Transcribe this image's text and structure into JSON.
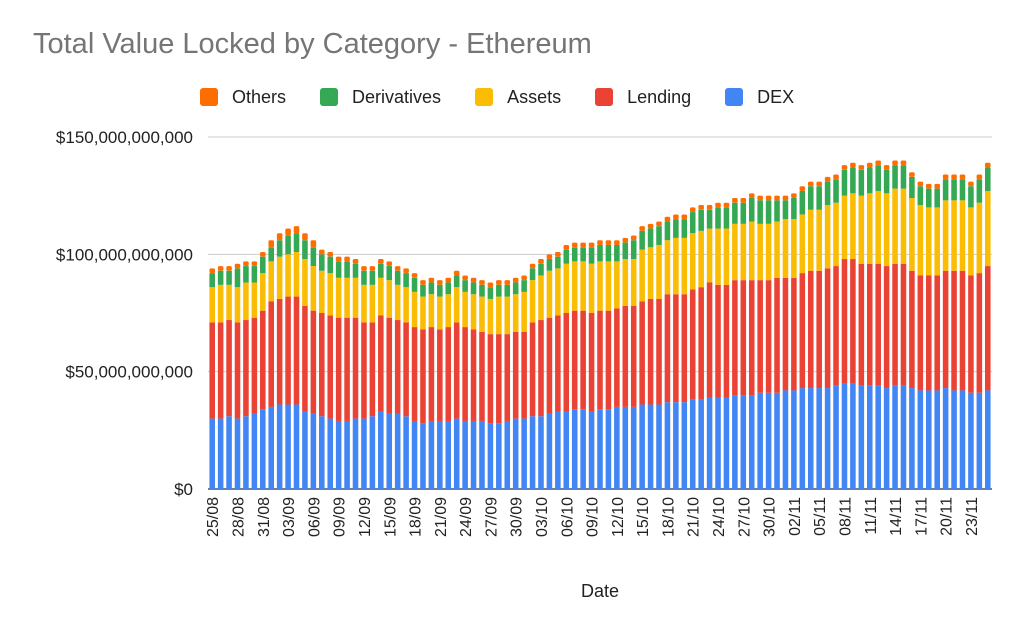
{
  "chart_data": {
    "type": "bar",
    "stacked": true,
    "title": "Total Value Locked by Category - Ethereum",
    "xlabel": "Date",
    "ylabel": "",
    "ylim": [
      0,
      150000000000
    ],
    "yticks": [
      0,
      50000000000,
      100000000000,
      150000000000
    ],
    "ytick_labels": [
      "$0",
      "$50,000,000,000",
      "$100,000,000,000",
      "$150,000,000,000"
    ],
    "grid": true,
    "legend_position": "top",
    "legend": [
      "Others",
      "Derivatives",
      "Assets",
      "Lending",
      "DEX"
    ],
    "tick_labels": [
      "25/08",
      "28/08",
      "31/08",
      "03/09",
      "06/09",
      "09/09",
      "12/09",
      "15/09",
      "18/09",
      "21/09",
      "24/09",
      "27/09",
      "30/09",
      "03/10",
      "06/10",
      "09/10",
      "12/10",
      "15/10",
      "18/10",
      "21/10",
      "24/10",
      "27/10",
      "30/10",
      "02/11",
      "05/11",
      "08/11",
      "11/11",
      "14/11",
      "17/11",
      "20/11",
      "23/11"
    ],
    "tick_every": 3,
    "categories": [
      "25/08",
      "26/08",
      "27/08",
      "28/08",
      "29/08",
      "30/08",
      "31/08",
      "01/09",
      "02/09",
      "03/09",
      "04/09",
      "05/09",
      "06/09",
      "07/09",
      "08/09",
      "09/09",
      "10/09",
      "11/09",
      "12/09",
      "13/09",
      "14/09",
      "15/09",
      "16/09",
      "17/09",
      "18/09",
      "19/09",
      "20/09",
      "21/09",
      "22/09",
      "23/09",
      "24/09",
      "25/09",
      "26/09",
      "27/09",
      "28/09",
      "29/09",
      "30/09",
      "01/10",
      "02/10",
      "03/10",
      "04/10",
      "05/10",
      "06/10",
      "07/10",
      "08/10",
      "09/10",
      "10/10",
      "11/10",
      "12/10",
      "13/10",
      "14/10",
      "15/10",
      "16/10",
      "17/10",
      "18/10",
      "19/10",
      "20/10",
      "21/10",
      "22/10",
      "23/10",
      "24/10",
      "25/10",
      "26/10",
      "27/10",
      "28/10",
      "29/10",
      "30/10",
      "31/10",
      "01/11",
      "02/11",
      "03/11",
      "04/11",
      "05/11",
      "06/11",
      "07/11",
      "08/11",
      "09/11",
      "10/11",
      "11/11",
      "12/11",
      "13/11",
      "14/11",
      "15/11",
      "16/11",
      "17/11",
      "18/11",
      "19/11",
      "20/11",
      "21/11",
      "22/11",
      "23/11",
      "24/11",
      "25/11"
    ],
    "series": [
      {
        "name": "DEX",
        "color": "#4285f4",
        "values": [
          30,
          30,
          31,
          30,
          31,
          32,
          34,
          35,
          36,
          36,
          36,
          33,
          32,
          31,
          30,
          29,
          29,
          30,
          30,
          31,
          33,
          32,
          32,
          31,
          29,
          28,
          29,
          29,
          29,
          30,
          29,
          29,
          29,
          28,
          28,
          29,
          30,
          30,
          31,
          31,
          32,
          33,
          33,
          34,
          34,
          33,
          34,
          34,
          35,
          35,
          35,
          36,
          36,
          36,
          37,
          37,
          37,
          38,
          38,
          39,
          39,
          39,
          40,
          40,
          40,
          41,
          41,
          41,
          42,
          42,
          43,
          43,
          43,
          43,
          44,
          45,
          45,
          44,
          44,
          44,
          43,
          44,
          44,
          43,
          42,
          42,
          42,
          43,
          42,
          42,
          41,
          41,
          42
        ]
      },
      {
        "name": "Lending",
        "color": "#ea4335",
        "values": [
          41,
          41,
          41,
          41,
          41,
          41,
          42,
          45,
          45,
          46,
          46,
          45,
          44,
          44,
          44,
          44,
          44,
          43,
          41,
          40,
          41,
          41,
          40,
          40,
          40,
          40,
          40,
          39,
          40,
          41,
          40,
          39,
          38,
          38,
          38,
          37,
          37,
          37,
          40,
          41,
          41,
          41,
          42,
          42,
          42,
          42,
          42,
          42,
          42,
          43,
          43,
          44,
          45,
          45,
          46,
          46,
          46,
          47,
          48,
          49,
          48,
          48,
          49,
          49,
          49,
          48,
          48,
          49,
          48,
          48,
          49,
          50,
          50,
          51,
          51,
          53,
          53,
          52,
          52,
          52,
          52,
          52,
          52,
          50,
          49,
          49,
          49,
          50,
          51,
          51,
          50,
          51,
          53
        ]
      },
      {
        "name": "Assets",
        "color": "#fbbc04",
        "values": [
          15,
          16,
          15,
          15,
          16,
          15,
          16,
          17,
          18,
          18,
          19,
          20,
          19,
          18,
          18,
          17,
          17,
          17,
          16,
          16,
          16,
          16,
          15,
          15,
          15,
          14,
          14,
          14,
          14,
          15,
          15,
          15,
          15,
          15,
          16,
          16,
          16,
          17,
          18,
          19,
          20,
          20,
          21,
          21,
          21,
          21,
          21,
          21,
          20,
          20,
          20,
          22,
          22,
          23,
          23,
          24,
          24,
          24,
          24,
          23,
          24,
          24,
          24,
          24,
          25,
          24,
          24,
          24,
          25,
          25,
          25,
          26,
          26,
          27,
          27,
          27,
          28,
          29,
          30,
          31,
          31,
          32,
          32,
          31,
          30,
          29,
          29,
          30,
          30,
          30,
          29,
          30,
          32
        ]
      },
      {
        "name": "Derivatives",
        "color": "#34a853",
        "values": [
          6,
          6,
          6,
          8,
          7,
          7,
          7,
          6,
          7,
          8,
          8,
          8,
          8,
          7,
          7,
          7,
          7,
          6,
          6,
          6,
          6,
          6,
          6,
          6,
          6,
          5,
          5,
          5,
          5,
          5,
          5,
          5,
          5,
          5,
          5,
          5,
          5,
          5,
          5,
          5,
          5,
          5,
          6,
          6,
          6,
          7,
          7,
          7,
          7,
          7,
          8,
          8,
          8,
          8,
          8,
          8,
          8,
          9,
          9,
          8,
          9,
          9,
          9,
          9,
          10,
          10,
          10,
          9,
          8,
          9,
          10,
          10,
          10,
          10,
          10,
          11,
          11,
          11,
          11,
          11,
          10,
          10,
          10,
          9,
          8,
          8,
          8,
          9,
          9,
          9,
          9,
          10,
          10
        ]
      },
      {
        "name": "Others",
        "color": "#ff6d01",
        "values": [
          2,
          2,
          2,
          2,
          2,
          2,
          2,
          3,
          3,
          3,
          3,
          3,
          3,
          2,
          2,
          2,
          2,
          2,
          2,
          2,
          2,
          2,
          2,
          2,
          2,
          2,
          2,
          2,
          2,
          2,
          2,
          2,
          2,
          2,
          2,
          2,
          2,
          2,
          2,
          2,
          2,
          2,
          2,
          2,
          2,
          2,
          2,
          2,
          2,
          2,
          2,
          2,
          2,
          2,
          2,
          2,
          2,
          2,
          2,
          2,
          2,
          2,
          2,
          2,
          2,
          2,
          2,
          2,
          2,
          2,
          2,
          2,
          2,
          2,
          2,
          2,
          2,
          2,
          2,
          2,
          2,
          2,
          2,
          2,
          2,
          2,
          2,
          2,
          2,
          2,
          2,
          2,
          2
        ]
      }
    ],
    "value_unit": "billions USD"
  }
}
